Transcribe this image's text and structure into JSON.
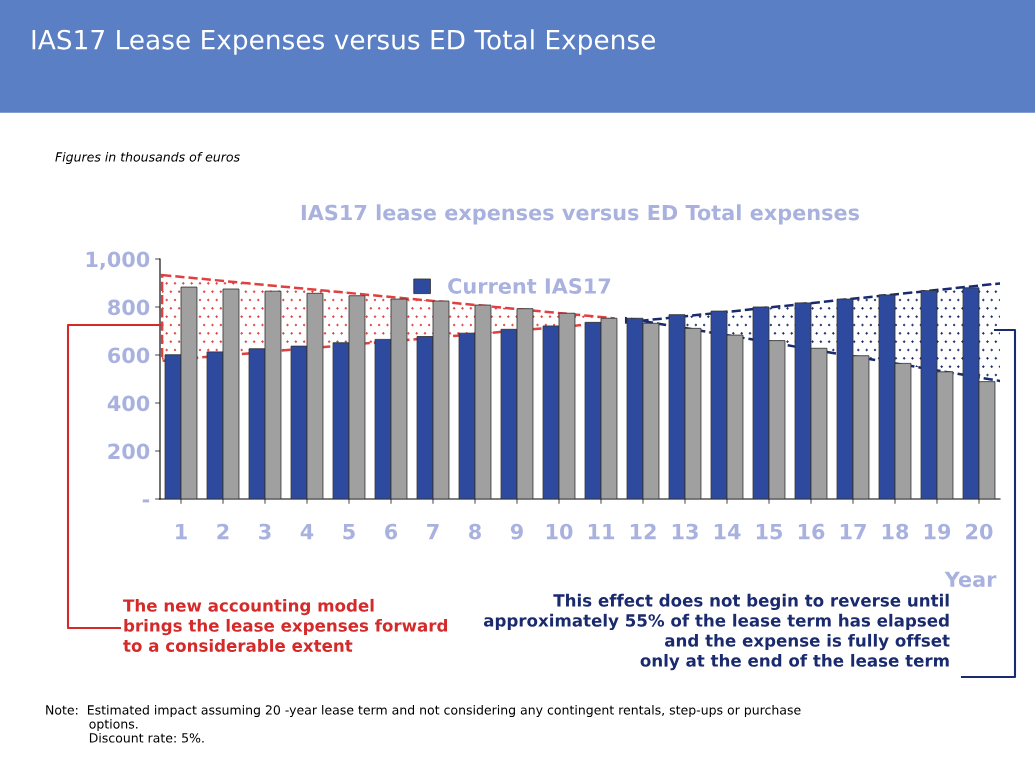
{
  "chart_data": {
    "type": "bar",
    "title": "IAS17 Lease Expenses versus ED Total Expense",
    "subtitle": "IAS17 lease expenses versus ED Total expenses",
    "xlabel": "Year",
    "categories": [
      "1",
      "2",
      "3",
      "4",
      "5",
      "6",
      "7",
      "8",
      "9",
      "10",
      "11",
      "12",
      "13",
      "14",
      "15",
      "16",
      "17",
      "18",
      "19",
      "20"
    ],
    "series": [
      {
        "name": "Current IAS17",
        "color": "#2e4a9e",
        "values": [
          601,
          613,
          626,
          637,
          651,
          665,
          677,
          691,
          707,
          721,
          736,
          753,
          768,
          783,
          800,
          817,
          833,
          850,
          868,
          880
        ]
      },
      {
        "color": "#a0a0a0",
        "values": [
          883,
          875,
          866,
          857,
          847,
          833,
          825,
          808,
          793,
          774,
          753,
          732,
          711,
          683,
          660,
          628,
          597,
          565,
          530,
          489
        ]
      }
    ],
    "ylim": [
      0,
      1000
    ],
    "yticks": [
      {
        "value": 0,
        "label": "-"
      },
      200,
      400,
      600,
      800,
      {
        "value": 1000,
        "label": "1,000"
      }
    ],
    "grid": false,
    "legend": "top",
    "annotations": [
      "Figures in thousands of euros",
      "The new accounting model\nbrings the lease expenses forward\nto a considerable extent",
      "This effect does not begin to reverse until\napproximately 55% of the lease term has elapsed\nand the expense is fully offset\nonly at the end of the lease term",
      "Note:  Estimated impact assuming 20 -year lease term and not considering any contingent rentals, step-ups or purchase\n           options.\n           Discount rate: 5%."
    ]
  }
}
